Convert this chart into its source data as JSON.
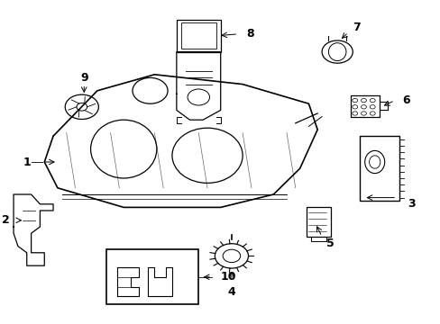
{
  "title": "",
  "bg_color": "#ffffff",
  "line_color": "#000000",
  "label_color": "#000000",
  "font_size": 9
}
